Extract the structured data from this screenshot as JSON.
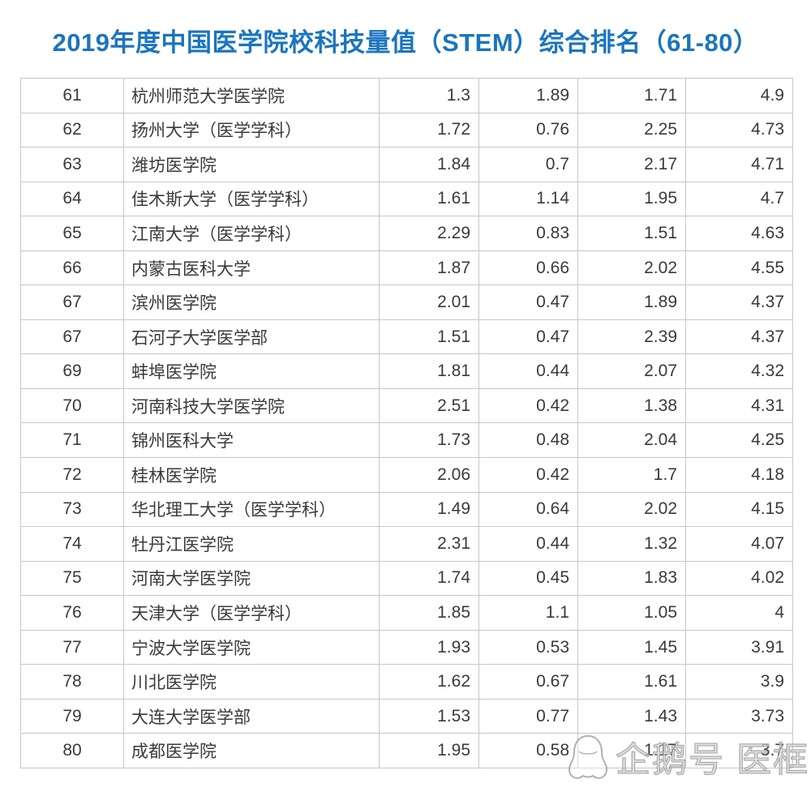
{
  "title": "2019年度中国医学院校科技量值（STEM）综合排名（61-80）",
  "watermark": {
    "icon": "penguin-outline-icon",
    "text": "企鹅号 医框"
  },
  "colors": {
    "title_blue": "#1b75be",
    "table_border_gray": "#c7c7c7",
    "cell_text": "#3a3a3a",
    "watermark_gray": "#9e9e9e",
    "background": "#ffffff"
  },
  "chart_data": {
    "type": "table",
    "title": "2019年度中国医学院校科技量值（STEM）综合排名（61-80）",
    "header_visible": false,
    "grid": true,
    "rank_range": "61-80",
    "rows": [
      {
        "rank": "61",
        "name": "杭州师范大学医学院",
        "v1": "1.3",
        "v2": "1.89",
        "v3": "1.71",
        "total": "4.9"
      },
      {
        "rank": "62",
        "name": "扬州大学（医学学科）",
        "v1": "1.72",
        "v2": "0.76",
        "v3": "2.25",
        "total": "4.73"
      },
      {
        "rank": "63",
        "name": "潍坊医学院",
        "v1": "1.84",
        "v2": "0.7",
        "v3": "2.17",
        "total": "4.71"
      },
      {
        "rank": "64",
        "name": "佳木斯大学（医学学科）",
        "v1": "1.61",
        "v2": "1.14",
        "v3": "1.95",
        "total": "4.7"
      },
      {
        "rank": "65",
        "name": "江南大学（医学学科）",
        "v1": "2.29",
        "v2": "0.83",
        "v3": "1.51",
        "total": "4.63"
      },
      {
        "rank": "66",
        "name": "内蒙古医科大学",
        "v1": "1.87",
        "v2": "0.66",
        "v3": "2.02",
        "total": "4.55"
      },
      {
        "rank": "67",
        "name": "滨州医学院",
        "v1": "2.01",
        "v2": "0.47",
        "v3": "1.89",
        "total": "4.37"
      },
      {
        "rank": "67",
        "name": "石河子大学医学部",
        "v1": "1.51",
        "v2": "0.47",
        "v3": "2.39",
        "total": "4.37"
      },
      {
        "rank": "69",
        "name": "蚌埠医学院",
        "v1": "1.81",
        "v2": "0.44",
        "v3": "2.07",
        "total": "4.32"
      },
      {
        "rank": "70",
        "name": "河南科技大学医学院",
        "v1": "2.51",
        "v2": "0.42",
        "v3": "1.38",
        "total": "4.31"
      },
      {
        "rank": "71",
        "name": "锦州医科大学",
        "v1": "1.73",
        "v2": "0.48",
        "v3": "2.04",
        "total": "4.25"
      },
      {
        "rank": "72",
        "name": "桂林医学院",
        "v1": "2.06",
        "v2": "0.42",
        "v3": "1.7",
        "total": "4.18"
      },
      {
        "rank": "73",
        "name": "华北理工大学（医学学科）",
        "v1": "1.49",
        "v2": "0.64",
        "v3": "2.02",
        "total": "4.15"
      },
      {
        "rank": "74",
        "name": "牡丹江医学院",
        "v1": "2.31",
        "v2": "0.44",
        "v3": "1.32",
        "total": "4.07"
      },
      {
        "rank": "75",
        "name": "河南大学医学院",
        "v1": "1.74",
        "v2": "0.45",
        "v3": "1.83",
        "total": "4.02"
      },
      {
        "rank": "76",
        "name": "天津大学（医学学科）",
        "v1": "1.85",
        "v2": "1.1",
        "v3": "1.05",
        "total": "4"
      },
      {
        "rank": "77",
        "name": "宁波大学医学院",
        "v1": "1.93",
        "v2": "0.53",
        "v3": "1.45",
        "total": "3.91"
      },
      {
        "rank": "78",
        "name": "川北医学院",
        "v1": "1.62",
        "v2": "0.67",
        "v3": "1.61",
        "total": "3.9"
      },
      {
        "rank": "79",
        "name": "大连大学医学部",
        "v1": "1.53",
        "v2": "0.77",
        "v3": "1.43",
        "total": "3.73"
      },
      {
        "rank": "80",
        "name": "成都医学院",
        "v1": "1.95",
        "v2": "0.58",
        "v3": "1.17",
        "total": "3.7"
      }
    ]
  }
}
